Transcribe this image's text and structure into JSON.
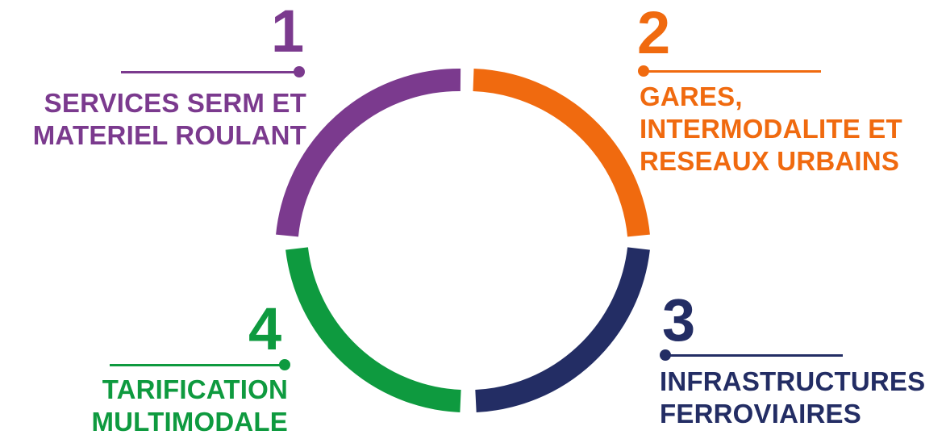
{
  "colors": {
    "purple": "#7b3a8e",
    "orange": "#f06a0f",
    "navy": "#232d64",
    "green": "#0e9a3f"
  },
  "segments": [
    {
      "number": "1",
      "line1": "SERVICES SERM ET",
      "line2": "MATERIEL ROULANT",
      "line3": ""
    },
    {
      "number": "2",
      "line1": "GARES,",
      "line2": "INTERMODALITE ET",
      "line3": "RESEAUX URBAINS"
    },
    {
      "number": "3",
      "line1": "INFRASTRUCTURES",
      "line2": "FERROVIAIRES",
      "line3": ""
    },
    {
      "number": "4",
      "line1": "TARIFICATION",
      "line2": "MULTIMODALE",
      "line3": ""
    }
  ]
}
